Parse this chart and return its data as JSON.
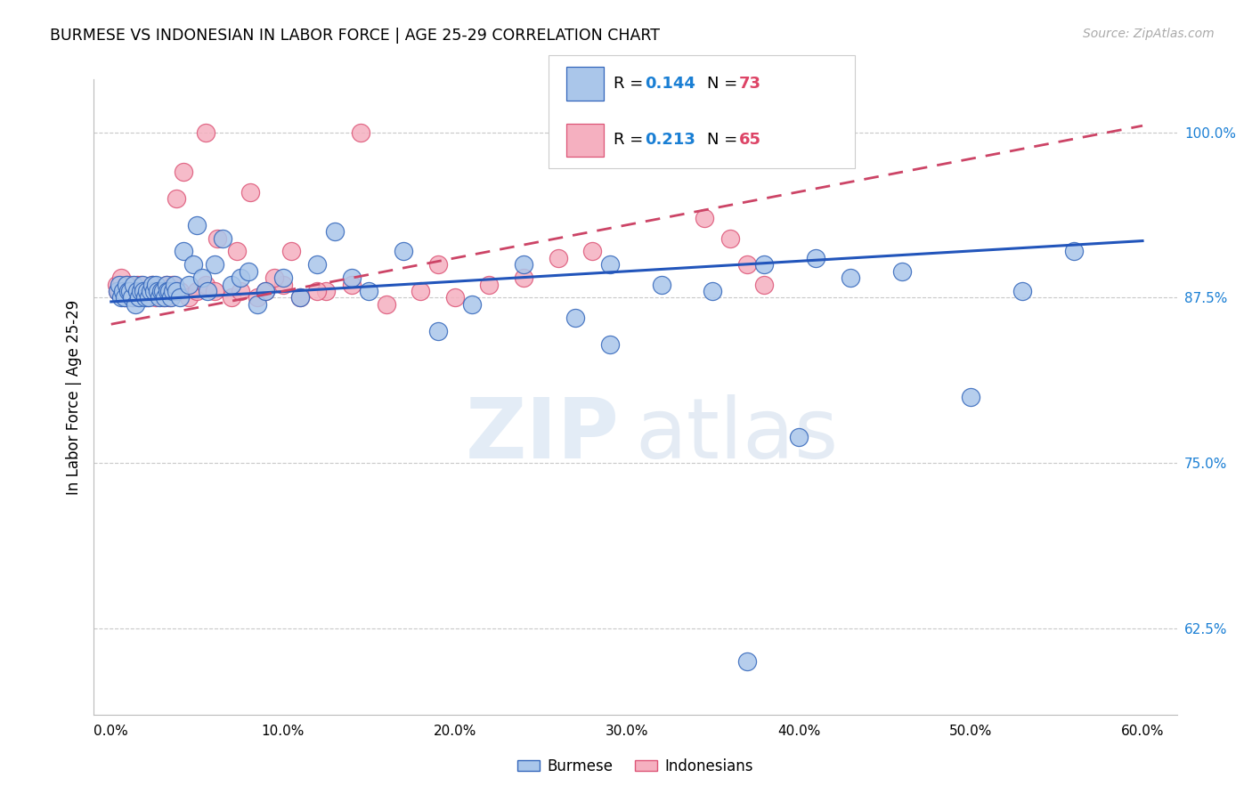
{
  "title": "BURMESE VS INDONESIAN IN LABOR FORCE | AGE 25-29 CORRELATION CHART",
  "source": "Source: ZipAtlas.com",
  "ylabel": "In Labor Force | Age 25-29",
  "x_tick_vals": [
    0.0,
    10.0,
    20.0,
    30.0,
    40.0,
    50.0,
    60.0
  ],
  "y_tick_vals": [
    62.5,
    75.0,
    87.5,
    100.0
  ],
  "y_tick_labels": [
    "62.5%",
    "75.0%",
    "87.5%",
    "100.0%"
  ],
  "xlim": [
    -1.0,
    62.0
  ],
  "ylim": [
    56.0,
    104.0
  ],
  "legend_blue_R": "0.144",
  "legend_blue_N": "73",
  "legend_pink_R": "0.213",
  "legend_pink_N": "65",
  "blue_fill": "#aac6ea",
  "pink_fill": "#f5b0c0",
  "blue_edge": "#3366bb",
  "pink_edge": "#dd5577",
  "blue_line": "#2255bb",
  "pink_line": "#cc4466",
  "R_color": "#1a7fd4",
  "N_color": "#dd4466",
  "blue_scatter_x": [
    0.4,
    0.5,
    0.6,
    0.7,
    0.8,
    0.9,
    1.0,
    1.1,
    1.2,
    1.3,
    1.4,
    1.5,
    1.6,
    1.7,
    1.8,
    1.9,
    2.0,
    2.1,
    2.2,
    2.3,
    2.4,
    2.5,
    2.6,
    2.7,
    2.8,
    2.9,
    3.0,
    3.1,
    3.2,
    3.3,
    3.4,
    3.5,
    3.6,
    3.7,
    3.8,
    4.0,
    4.2,
    4.5,
    4.8,
    5.0,
    5.3,
    5.6,
    6.0,
    6.5,
    7.0,
    7.5,
    8.0,
    8.5,
    9.0,
    10.0,
    11.0,
    12.0,
    13.0,
    14.0,
    15.0,
    17.0,
    19.0,
    21.0,
    24.0,
    27.0,
    29.0,
    32.0,
    35.0,
    38.0,
    41.0,
    43.0,
    46.0,
    50.0,
    53.0,
    56.0,
    29.0,
    40.0,
    37.0
  ],
  "blue_scatter_y": [
    88.0,
    88.5,
    87.5,
    88.0,
    87.5,
    88.5,
    88.0,
    88.0,
    87.5,
    88.5,
    87.0,
    88.0,
    87.5,
    88.0,
    88.5,
    88.0,
    87.5,
    88.0,
    87.5,
    88.0,
    88.5,
    88.0,
    88.5,
    88.0,
    87.5,
    88.0,
    88.0,
    87.5,
    88.5,
    88.0,
    88.0,
    87.5,
    88.0,
    88.5,
    88.0,
    87.5,
    91.0,
    88.5,
    90.0,
    93.0,
    89.0,
    88.0,
    90.0,
    92.0,
    88.5,
    89.0,
    89.5,
    87.0,
    88.0,
    89.0,
    87.5,
    90.0,
    92.5,
    89.0,
    88.0,
    91.0,
    85.0,
    87.0,
    90.0,
    86.0,
    90.0,
    88.5,
    88.0,
    90.0,
    90.5,
    89.0,
    89.5,
    80.0,
    88.0,
    91.0,
    84.0,
    77.0,
    60.0
  ],
  "pink_scatter_x": [
    0.3,
    0.4,
    0.5,
    0.6,
    0.7,
    0.8,
    0.9,
    1.0,
    1.1,
    1.2,
    1.3,
    1.4,
    1.5,
    1.6,
    1.7,
    1.8,
    2.0,
    2.1,
    2.2,
    2.4,
    2.5,
    2.6,
    2.8,
    3.0,
    3.1,
    3.2,
    3.4,
    3.5,
    3.6,
    3.8,
    4.0,
    4.5,
    5.0,
    5.5,
    6.0,
    7.0,
    7.5,
    8.5,
    9.0,
    10.0,
    11.0,
    12.5,
    14.0,
    16.0,
    18.0,
    19.0,
    20.0,
    22.0,
    24.0,
    26.0,
    28.0,
    34.5,
    36.0,
    37.0,
    38.0,
    3.8,
    4.2,
    5.5,
    6.2,
    7.3,
    8.1,
    9.5,
    10.5,
    12.0,
    14.5
  ],
  "pink_scatter_y": [
    88.5,
    88.0,
    88.0,
    89.0,
    88.0,
    87.5,
    88.5,
    88.0,
    88.5,
    88.0,
    87.5,
    88.0,
    88.5,
    88.0,
    88.5,
    88.0,
    88.0,
    87.5,
    88.0,
    88.5,
    88.0,
    87.5,
    88.0,
    87.5,
    88.0,
    88.5,
    87.5,
    88.0,
    88.5,
    88.0,
    88.0,
    87.5,
    88.0,
    88.5,
    88.0,
    87.5,
    88.0,
    87.5,
    88.0,
    88.5,
    87.5,
    88.0,
    88.5,
    87.0,
    88.0,
    90.0,
    87.5,
    88.5,
    89.0,
    90.5,
    91.0,
    93.5,
    92.0,
    90.0,
    88.5,
    95.0,
    97.0,
    100.0,
    92.0,
    91.0,
    95.5,
    89.0,
    91.0,
    88.0,
    100.0
  ]
}
